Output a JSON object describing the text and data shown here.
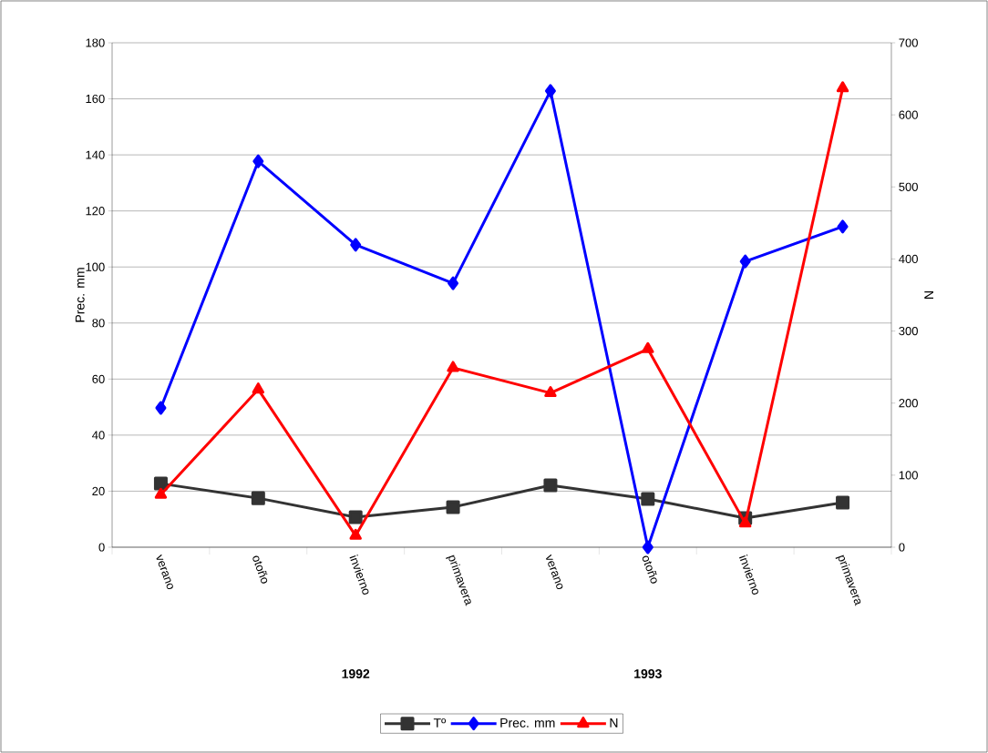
{
  "chart_data": {
    "type": "line",
    "categories": [
      "verano",
      "otoño",
      "invierno",
      "primavera",
      "verano",
      "otoño",
      "invierno",
      "primavera"
    ],
    "series": [
      {
        "name": "Tº",
        "color": "#333333",
        "marker": "square",
        "values": [
          22.7,
          17.5,
          10.7,
          14.3,
          22.1,
          17.2,
          10.4,
          15.9
        ]
      },
      {
        "name": "Prec. mm",
        "color": "#0000ff",
        "marker": "diamond",
        "values": [
          49.7,
          137.7,
          107.9,
          94.2,
          162.8,
          0,
          102,
          114.4
        ]
      },
      {
        "name": "N",
        "color": "#ff0000",
        "marker": "triangle",
        "axis": "y2",
        "values": [
          73,
          219,
          16,
          249,
          214,
          275,
          33,
          637
        ]
      }
    ],
    "ylabel": "Prec. mm",
    "y2label": "N",
    "ylim": [
      0,
      180
    ],
    "yticks": [
      0,
      20,
      40,
      60,
      80,
      100,
      120,
      140,
      160,
      180
    ],
    "y2lim": [
      0,
      700
    ],
    "y2ticks": [
      0,
      100,
      200,
      300,
      400,
      500,
      600,
      700
    ],
    "grid": "y",
    "legend": "bottom",
    "line_style": "solid",
    "annotations": [
      "1992",
      "1993"
    ]
  }
}
